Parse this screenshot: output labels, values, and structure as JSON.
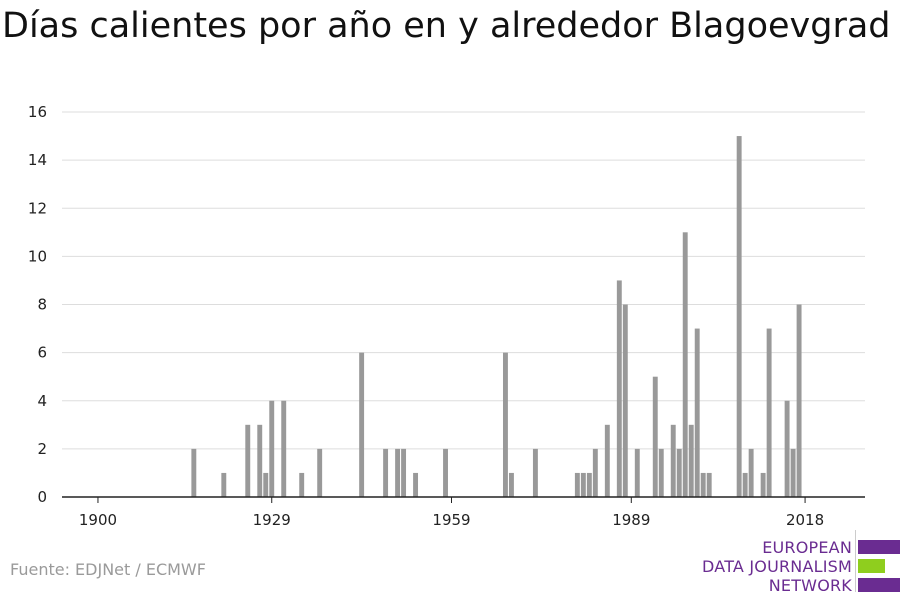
{
  "title": "Días calientes por año en y alrededor Blagoevgrad",
  "source": "Fuente: EDJNet / ECMWF",
  "logo": {
    "lines": [
      "EUROPEAN",
      "DATA JOURNALISM",
      "NETWORK"
    ],
    "colors": {
      "purple": "#6a2c91",
      "green": "#8fce1e"
    }
  },
  "colors": {
    "bar": "#999999",
    "grid": "#dddddd",
    "axis": "#222222"
  },
  "chart_data": {
    "type": "bar",
    "title": "Días calientes por año en y alrededor Blagoevgrad",
    "xlabel": "",
    "ylabel": "",
    "xlim": [
      1894,
      2028
    ],
    "ylim": [
      0,
      16
    ],
    "grid": true,
    "x_ticks": [
      1900,
      1929,
      1959,
      1989,
      2018
    ],
    "y_ticks": [
      0,
      2,
      4,
      6,
      8,
      10,
      12,
      14,
      16
    ],
    "x": [
      1916,
      1921,
      1925,
      1927,
      1928,
      1929,
      1931,
      1934,
      1937,
      1944,
      1948,
      1950,
      1951,
      1953,
      1958,
      1968,
      1969,
      1973,
      1980,
      1981,
      1982,
      1983,
      1985,
      1987,
      1988,
      1990,
      1993,
      1994,
      1996,
      1997,
      1998,
      1999,
      2000,
      2001,
      2002,
      2007,
      2008,
      2009,
      2011,
      2012,
      2015,
      2016,
      2017
    ],
    "values": [
      2,
      1,
      3,
      3,
      1,
      4,
      4,
      1,
      2,
      6,
      2,
      2,
      2,
      1,
      2,
      6,
      1,
      2,
      1,
      1,
      1,
      2,
      3,
      9,
      8,
      2,
      5,
      2,
      3,
      2,
      11,
      3,
      7,
      1,
      1,
      15,
      1,
      2,
      1,
      7,
      4,
      2,
      8
    ]
  }
}
